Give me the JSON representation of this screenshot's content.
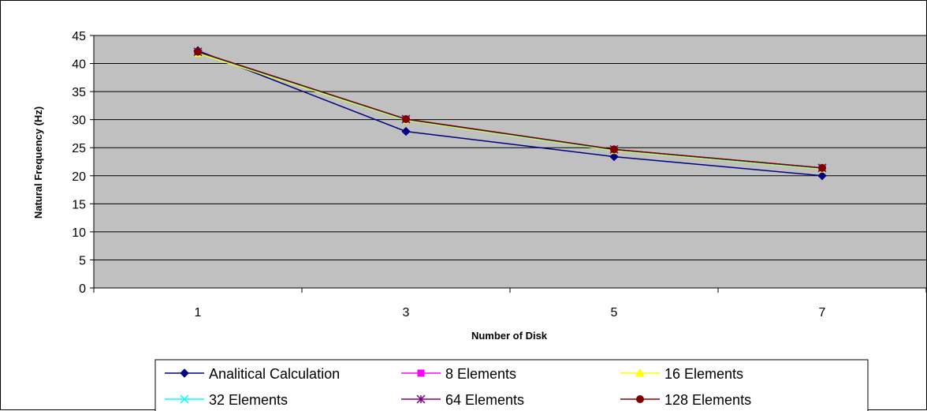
{
  "chart_data": {
    "type": "line",
    "title": "",
    "xlabel": "Number of Disk",
    "ylabel": "Natural Frequency (Hz)",
    "categories": [
      "1",
      "3",
      "5",
      "7"
    ],
    "ylim": [
      0,
      45
    ],
    "yticks": [
      0,
      5,
      10,
      15,
      20,
      25,
      30,
      35,
      40,
      45
    ],
    "grid": true,
    "plot_background": "#C0C0C0",
    "legend_position": "bottom",
    "series": [
      {
        "name": "Analitical Calculation",
        "color": "#000080",
        "marker": "diamond",
        "values": [
          42.3,
          27.9,
          23.4,
          20.0
        ]
      },
      {
        "name": "8 Elements",
        "color": "#FF00FF",
        "marker": "square",
        "values": [
          42.0,
          30.0,
          24.6,
          21.3
        ]
      },
      {
        "name": "16 Elements",
        "color": "#FFFF00",
        "marker": "triangle",
        "values": [
          41.8,
          29.9,
          24.5,
          21.2
        ]
      },
      {
        "name": "32 Elements",
        "color": "#00FFFF",
        "marker": "x",
        "values": [
          42.0,
          30.0,
          24.6,
          21.3
        ]
      },
      {
        "name": "64 Elements",
        "color": "#800080",
        "marker": "star",
        "values": [
          42.1,
          30.1,
          24.7,
          21.4
        ]
      },
      {
        "name": "128 Elements",
        "color": "#800000",
        "marker": "circle",
        "values": [
          42.1,
          30.1,
          24.7,
          21.4
        ]
      }
    ]
  }
}
